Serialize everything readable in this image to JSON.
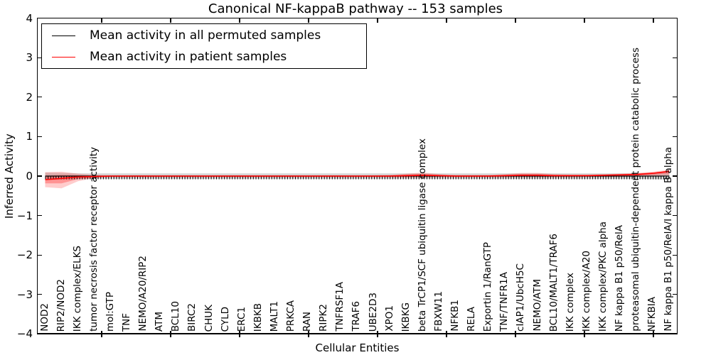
{
  "title": "Canonical NF-kappaB pathway -- 153 samples",
  "axes": {
    "ylabel": "Inferred Activity",
    "xlabel": "Cellular Entities",
    "ylim": [
      -4,
      4
    ],
    "yticks": [
      {
        "v": 4,
        "label": "4"
      },
      {
        "v": 3,
        "label": "3"
      },
      {
        "v": 2,
        "label": "2"
      },
      {
        "v": 1,
        "label": "1"
      },
      {
        "v": 0,
        "label": "0"
      },
      {
        "v": -1,
        "label": "−1"
      },
      {
        "v": -2,
        "label": "−2"
      },
      {
        "v": -3,
        "label": "−3"
      },
      {
        "v": -4,
        "label": "−4"
      }
    ]
  },
  "chart_data": {
    "type": "line",
    "title": "Canonical NF-kappaB pathway -- 153 samples",
    "xlabel": "Cellular Entities",
    "ylabel": "Inferred Activity",
    "ylim": [
      -4,
      4
    ],
    "grid": false,
    "legend_position": "upper left",
    "categories": [
      "NOD2",
      "RIP2/NOD2",
      "IKK complex/ELKS",
      "tumor necrosis factor receptor activity",
      "mol:GTP",
      "TNF",
      "NEMO/A20/RIP2",
      "ATM",
      "BCL10",
      "BIRC2",
      "CHUK",
      "CYLD",
      "ERC1",
      "IKBKB",
      "MALT1",
      "PRKCA",
      "RAN",
      "RIPK2",
      "TNFRSF1A",
      "TRAF6",
      "UBE2D3",
      "XPO1",
      "IKBKG",
      "beta TrCP1/SCF ubiquitin ligase complex",
      "FBXW11",
      "NFKB1",
      "RELA",
      "Exportin 1/RanGTP",
      "TNF/TNFR1A",
      "cIAP1/UbcH5C",
      "NEMO/ATM",
      "BCL10/MALT1/TRAF6",
      "IKK complex",
      "IKK complex/A20",
      "IKK complex/PKC alpha",
      "NF kappa B1 p50/RelA",
      "proteasomal ubiquitin-dependent protein catabolic process",
      "NFKBIA",
      "NF kappa B1 p50/RelA/I kappa B alpha"
    ],
    "series": [
      {
        "name": "Mean activity in all permuted samples",
        "color": "#000000",
        "band_color": "rgba(0,0,0,0.16)",
        "values": [
          0,
          0,
          0,
          0,
          0,
          0,
          0,
          0,
          0,
          0,
          0,
          0,
          0,
          0,
          0,
          0,
          0,
          0,
          0,
          0,
          0,
          0,
          0,
          0,
          0,
          0,
          0,
          0,
          0,
          0,
          0,
          0,
          0,
          0,
          0,
          0,
          0,
          0,
          0
        ],
        "band_hi": [
          0.09,
          0.08,
          0.07,
          0.07,
          0.07,
          0.07,
          0.07,
          0.07,
          0.07,
          0.07,
          0.07,
          0.07,
          0.07,
          0.07,
          0.07,
          0.07,
          0.07,
          0.07,
          0.07,
          0.07,
          0.07,
          0.07,
          0.07,
          0.07,
          0.07,
          0.07,
          0.07,
          0.07,
          0.07,
          0.07,
          0.07,
          0.07,
          0.07,
          0.07,
          0.07,
          0.07,
          0.07,
          0.08,
          0.09
        ],
        "band_lo": [
          -0.1,
          -0.09,
          -0.08,
          -0.07,
          -0.07,
          -0.07,
          -0.07,
          -0.07,
          -0.07,
          -0.07,
          -0.07,
          -0.07,
          -0.07,
          -0.07,
          -0.07,
          -0.07,
          -0.07,
          -0.07,
          -0.07,
          -0.07,
          -0.07,
          -0.07,
          -0.07,
          -0.07,
          -0.07,
          -0.07,
          -0.07,
          -0.07,
          -0.07,
          -0.07,
          -0.07,
          -0.07,
          -0.07,
          -0.07,
          -0.07,
          -0.07,
          -0.07,
          -0.08,
          -0.09
        ]
      },
      {
        "name": "Mean activity in patient samples",
        "color": "#ff0000",
        "band_color": "rgba(255,0,0,0.20)",
        "values": [
          -0.09,
          -0.06,
          -0.02,
          -0.01,
          0,
          0,
          0,
          0,
          0,
          0,
          0,
          0,
          0,
          0,
          0,
          0,
          0,
          0,
          0,
          0,
          0,
          0,
          0.01,
          0.02,
          0.01,
          0,
          0,
          0,
          0.01,
          0.02,
          0.02,
          0.01,
          0.01,
          0.01,
          0.02,
          0.03,
          0.04,
          0.07,
          0.12
        ],
        "band_hi": [
          0.1,
          0.11,
          0.06,
          0.03,
          0.02,
          0.02,
          0.02,
          0.02,
          0.02,
          0.02,
          0.02,
          0.02,
          0.02,
          0.02,
          0.02,
          0.02,
          0.02,
          0.02,
          0.02,
          0.02,
          0.02,
          0.03,
          0.06,
          0.09,
          0.05,
          0.03,
          0.03,
          0.03,
          0.05,
          0.08,
          0.08,
          0.05,
          0.04,
          0.04,
          0.05,
          0.06,
          0.08,
          0.11,
          0.16
        ],
        "band_lo": [
          -0.28,
          -0.31,
          -0.13,
          -0.05,
          -0.03,
          -0.03,
          -0.03,
          -0.03,
          -0.03,
          -0.03,
          -0.03,
          -0.03,
          -0.03,
          -0.03,
          -0.03,
          -0.03,
          -0.03,
          -0.03,
          -0.03,
          -0.03,
          -0.03,
          -0.03,
          -0.04,
          -0.04,
          -0.03,
          -0.03,
          -0.03,
          -0.03,
          -0.03,
          -0.03,
          -0.03,
          -0.03,
          -0.03,
          -0.02,
          -0.02,
          -0.02,
          -0.01,
          0.0,
          0.02
        ]
      }
    ]
  }
}
